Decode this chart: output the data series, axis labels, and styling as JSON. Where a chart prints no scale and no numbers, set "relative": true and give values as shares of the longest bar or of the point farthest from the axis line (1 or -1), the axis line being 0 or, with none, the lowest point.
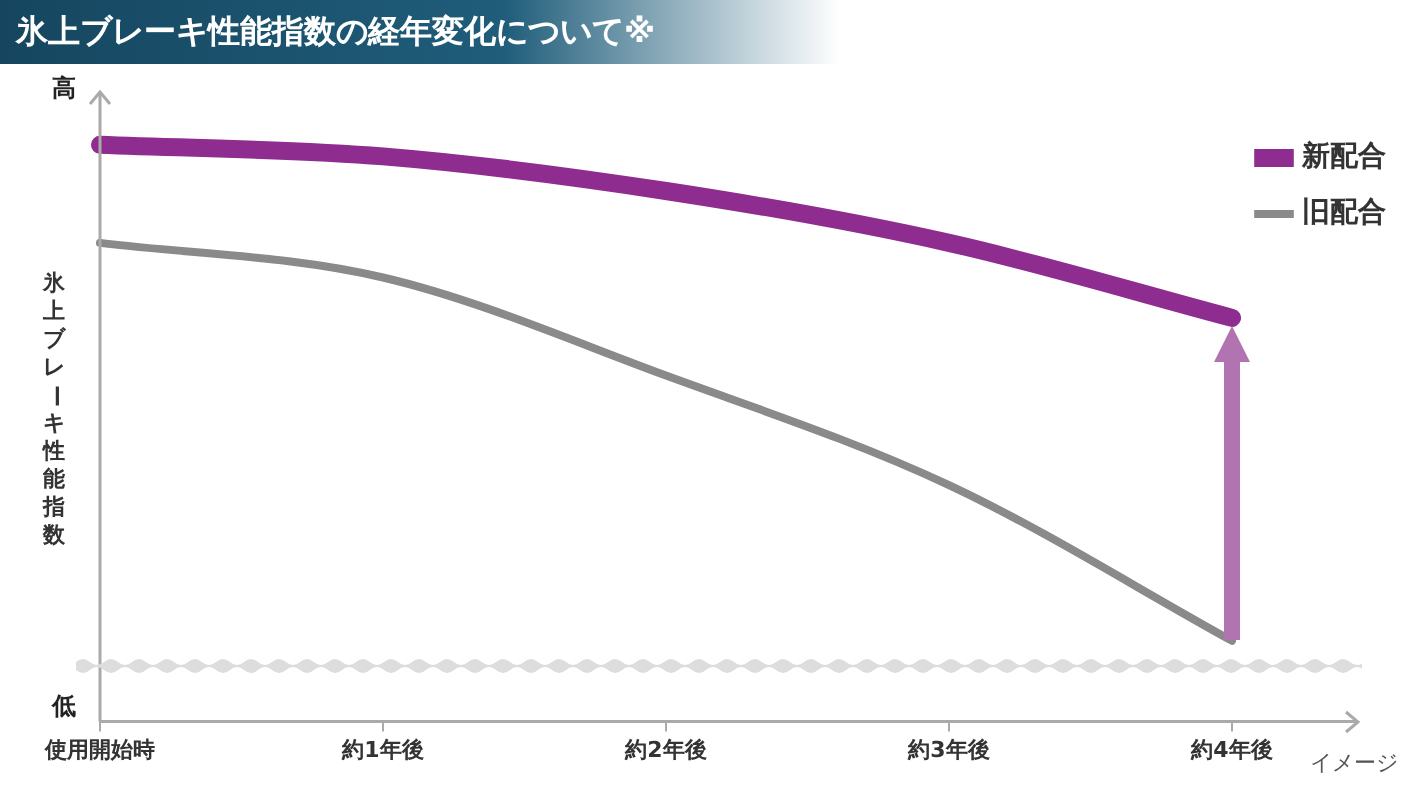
{
  "chart_data": {
    "type": "line",
    "title": "氷上ブレーキ性能指数の経年変化について※",
    "ylabel": "氷上ブレーキ性能指数",
    "relative": true,
    "categories": [
      "使用開始時",
      "約1年後",
      "約2年後",
      "約3年後",
      "約4年後"
    ],
    "series": [
      {
        "name": "新配合",
        "color": "#8e2c8f",
        "values": [
          1,
          0.98,
          0.92,
          0.83,
          0.7
        ]
      },
      {
        "name": "旧配合",
        "color": "#8a8a8a",
        "values": [
          0.83,
          0.77,
          0.6,
          0.41,
          0.14
        ]
      }
    ],
    "annotations": [
      "高",
      "低",
      "イメージ"
    ],
    "legend": "top right",
    "grid": false,
    "marker": "none",
    "line_style": "solid"
  }
}
